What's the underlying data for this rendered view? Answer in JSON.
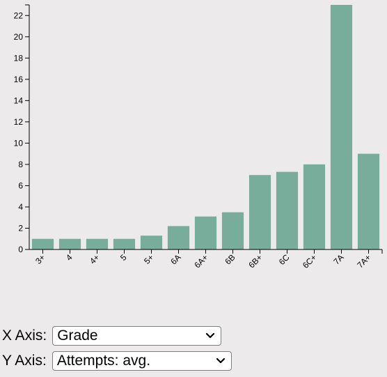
{
  "chart_data": {
    "type": "bar",
    "categories": [
      "3+",
      "4",
      "4+",
      "5",
      "5+",
      "6A",
      "6A+",
      "6B",
      "6B+",
      "6C",
      "6C+",
      "7A",
      "7A+"
    ],
    "values": [
      1,
      1,
      1,
      1,
      1.3,
      2.2,
      3.1,
      3.5,
      7,
      7.3,
      8,
      23,
      9
    ],
    "ylim": [
      0,
      23
    ],
    "yticks": [
      0,
      2,
      4,
      6,
      8,
      10,
      12,
      14,
      16,
      18,
      20,
      22
    ],
    "bar_color": "#79ad9b",
    "grid": false
  },
  "controls": {
    "x_axis": {
      "label": "X Axis:",
      "selected": "Grade"
    },
    "y_axis": {
      "label": "Y Axis:",
      "selected": "Attempts: avg."
    }
  }
}
